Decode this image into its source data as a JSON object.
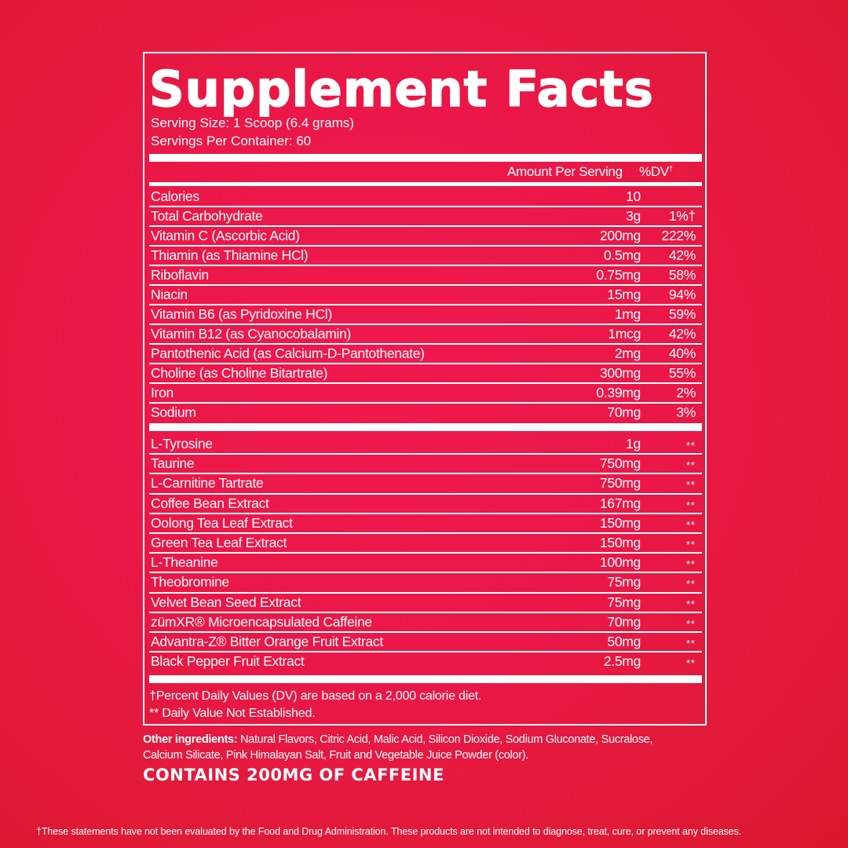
{
  "title": "Supplement Facts",
  "serving_size": "Serving Size: 1 Scoop (6.4 grams)",
  "servings_per_container": "Servings Per Container: 60",
  "header": {
    "amount": "Amount Per Serving",
    "dv": "%DV",
    "dv_mark": "†"
  },
  "nutrients": [
    {
      "name": "Calories",
      "amount": "10",
      "dv": ""
    },
    {
      "name": "Total Carbohydrate",
      "amount": "3g",
      "dv": "1%†"
    },
    {
      "name": "Vitamin C (Ascorbic Acid)",
      "amount": "200mg",
      "dv": "222%"
    },
    {
      "name": "Thiamin (as Thiamine HCl)",
      "amount": "0.5mg",
      "dv": "42%"
    },
    {
      "name": "Riboflavin",
      "amount": "0.75mg",
      "dv": "58%"
    },
    {
      "name": "Niacin",
      "amount": "15mg",
      "dv": "94%"
    },
    {
      "name": "Vitamin B6 (as Pyridoxine HCl)",
      "amount": "1mg",
      "dv": "59%"
    },
    {
      "name": "Vitamin B12 (as Cyanocobalamin)",
      "amount": "1mcg",
      "dv": "42%"
    },
    {
      "name": "Pantothenic Acid (as Calcium-D-Pantothenate)",
      "amount": "2mg",
      "dv": "40%"
    },
    {
      "name": "Choline (as Choline Bitartrate)",
      "amount": "300mg",
      "dv": "55%"
    },
    {
      "name": "Iron",
      "amount": "0.39mg",
      "dv": "2%"
    },
    {
      "name": "Sodium",
      "amount": "70mg",
      "dv": "3%"
    }
  ],
  "ingredients": [
    {
      "name": "L-Tyrosine",
      "amount": "1g",
      "dv": "**"
    },
    {
      "name": "Taurine",
      "amount": "750mg",
      "dv": "**"
    },
    {
      "name": "L-Carnitine Tartrate",
      "amount": "750mg",
      "dv": "**"
    },
    {
      "name": "Coffee Bean Extract",
      "amount": "167mg",
      "dv": "**"
    },
    {
      "name": "Oolong Tea Leaf Extract",
      "amount": "150mg",
      "dv": "**"
    },
    {
      "name": "Green Tea Leaf Extract",
      "amount": "150mg",
      "dv": "**"
    },
    {
      "name": "L-Theanine",
      "amount": "100mg",
      "dv": "**"
    },
    {
      "name": "Theobromine",
      "amount": "75mg",
      "dv": "**"
    },
    {
      "name": "Velvet Bean Seed Extract",
      "amount": "75mg",
      "dv": "**"
    },
    {
      "name": "zümXR® Microencapsulated Caffeine",
      "amount": "70mg",
      "dv": "**"
    },
    {
      "name": "Advantra-Z® Bitter Orange Fruit Extract",
      "amount": "50mg",
      "dv": "**"
    },
    {
      "name": "Black Pepper Fruit Extract",
      "amount": "2.5mg",
      "dv": "**"
    }
  ],
  "footnote_dv": "†Percent Daily Values (DV) are based on a 2,000 calorie diet.",
  "footnote_na": "** Daily Value Not Established.",
  "other_ingredients_label": "Other ingredients:",
  "other_ingredients": " Natural Flavors, Citric Acid, Malic Acid, Silicon Dioxide, Sodium Gluconate, Sucralose, Calcium Silicate, Pink Himalayan Salt, Fruit and Vegetable Juice Powder (color).",
  "caffeine_warning": "CONTAINS 200MG OF CAFFEINE",
  "disclaimer": "†These statements have not been evaluated by the Food and Drug Administration. These products are not intended to diagnose, treat, cure, or prevent any diseases."
}
